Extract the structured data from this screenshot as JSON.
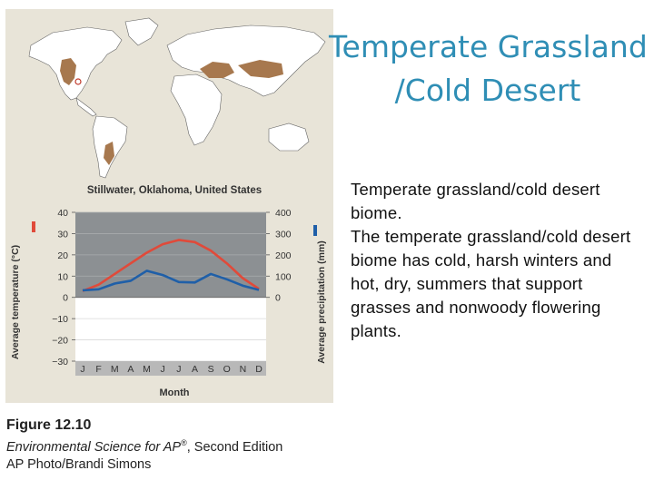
{
  "slide": {
    "title_line1": "Temperate Grassland",
    "title_line2": "/Cold Desert",
    "body_heading": "Temperate grassland/cold desert biome.",
    "body_text": "The temperate grassland/cold desert biome has cold, harsh winters and hot, dry, summers that support grasses and nonwoody flowering plants."
  },
  "caption": {
    "figure": "Figure 12.10",
    "book_title": "Environmental Science for AP",
    "book_title_mark": "®",
    "edition": ", Second Edition",
    "credit": "AP Photo/Brandi Simons"
  },
  "colors": {
    "title": "#2f8eb5",
    "biome_region": "#a7784e",
    "temperature_line": "#e04a3a",
    "precipitation_line": "#1f5fa8",
    "plot_above_zero": "#8c9093",
    "plot_below_zero": "#ffffff",
    "month_band": "#b8b8b8"
  },
  "chart_data": {
    "type": "line",
    "title": "Stillwater, Oklahoma, United States",
    "xlabel": "Month",
    "y_left_label": "Average temperature (°C)",
    "y_right_label": "Average precipitation (mm)",
    "categories": [
      "J",
      "F",
      "M",
      "A",
      "M",
      "J",
      "J",
      "A",
      "S",
      "O",
      "N",
      "D"
    ],
    "y_left_ticks": [
      "40",
      "30",
      "20",
      "10",
      "0",
      "−10",
      "−20",
      "−30"
    ],
    "y_right_ticks": [
      "400",
      "300",
      "200",
      "100",
      "0"
    ],
    "y_left_range": [
      -30,
      40
    ],
    "y_right_range": [
      0,
      400
    ],
    "grid": true,
    "series": [
      {
        "axis": "left",
        "values": [
          3,
          6,
          11,
          16,
          21,
          25,
          27,
          26,
          22,
          16,
          9,
          4
        ]
      },
      {
        "axis": "right",
        "values": [
          33,
          38,
          65,
          78,
          125,
          105,
          72,
          70,
          110,
          85,
          55,
          35
        ]
      }
    ]
  }
}
